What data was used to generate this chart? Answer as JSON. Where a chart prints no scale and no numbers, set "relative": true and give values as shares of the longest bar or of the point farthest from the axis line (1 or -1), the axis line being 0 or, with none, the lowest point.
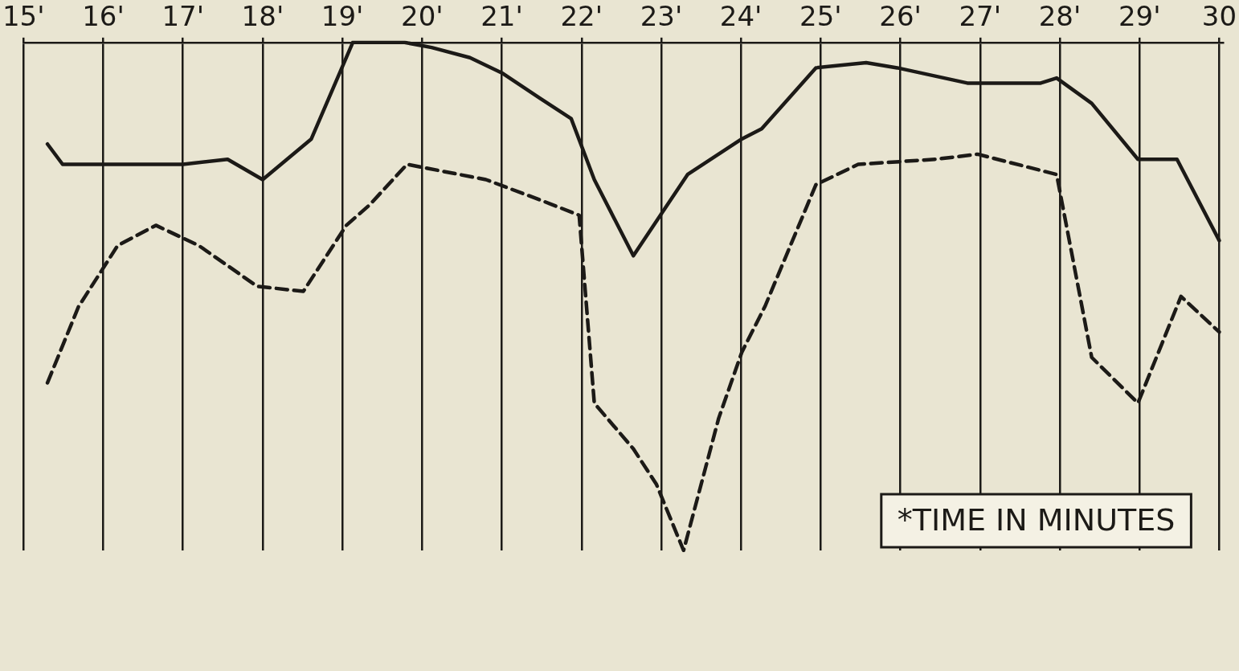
{
  "chart_data": {
    "type": "line",
    "relative": true,
    "grid": "x",
    "legend": false,
    "tick_labels": "x",
    "marker": "none",
    "xlim": [
      15,
      30.05
    ],
    "xticks": [
      {
        "value": 15,
        "label": "15'"
      },
      {
        "value": 16,
        "label": "16'"
      },
      {
        "value": 17,
        "label": "17'"
      },
      {
        "value": 18,
        "label": "18'"
      },
      {
        "value": 19,
        "label": "19'"
      },
      {
        "value": 20,
        "label": "20'"
      },
      {
        "value": 21,
        "label": "21'"
      },
      {
        "value": 22,
        "label": "22'"
      },
      {
        "value": 23,
        "label": "23'"
      },
      {
        "value": 24,
        "label": "24'"
      },
      {
        "value": 25,
        "label": "25'"
      },
      {
        "value": 26,
        "label": "26'"
      },
      {
        "value": 27,
        "label": "27'"
      },
      {
        "value": 28,
        "label": "28'"
      },
      {
        "value": 29,
        "label": "29'"
      },
      {
        "value": 30,
        "label": "30"
      }
    ],
    "annotations": [
      "*TIME IN MINUTES"
    ],
    "series": [
      {
        "color": "#1c1a17",
        "line_style": "solid",
        "x": [
          15.3,
          15.49,
          17.0,
          17.56,
          18.0,
          18.61,
          19.13,
          19.78,
          20.12,
          20.6,
          21.0,
          21.48,
          21.87,
          22.16,
          22.65,
          23.33,
          24.01,
          24.26,
          24.94,
          25.57,
          25.96,
          26.84,
          27.23,
          27.76,
          27.96,
          28.4,
          28.98,
          29.47,
          30.0
        ],
        "values": [
          0.8,
          0.76,
          0.76,
          0.77,
          0.73,
          0.81,
          1.0,
          1.0,
          0.99,
          0.97,
          0.94,
          0.89,
          0.85,
          0.73,
          0.58,
          0.74,
          0.81,
          0.83,
          0.95,
          0.96,
          0.95,
          0.92,
          0.92,
          0.92,
          0.93,
          0.88,
          0.77,
          0.77,
          0.61
        ]
      },
      {
        "color": "#1c1a17",
        "line_style": "dashed",
        "x": [
          15.3,
          15.69,
          16.18,
          16.66,
          17.2,
          17.93,
          18.51,
          19.05,
          19.34,
          19.81,
          20.8,
          21.48,
          21.97,
          22.16,
          22.65,
          22.94,
          23.28,
          23.72,
          24.01,
          24.3,
          24.94,
          25.47,
          26.44,
          26.97,
          27.96,
          28.4,
          28.98,
          29.52,
          30.0
        ],
        "values": [
          0.33,
          0.48,
          0.6,
          0.64,
          0.6,
          0.52,
          0.51,
          0.64,
          0.68,
          0.76,
          0.73,
          0.69,
          0.66,
          0.29,
          0.2,
          0.13,
          0,
          0.26,
          0.39,
          0.48,
          0.72,
          0.76,
          0.77,
          0.78,
          0.74,
          0.38,
          0.29,
          0.5,
          0.43
        ]
      }
    ]
  }
}
